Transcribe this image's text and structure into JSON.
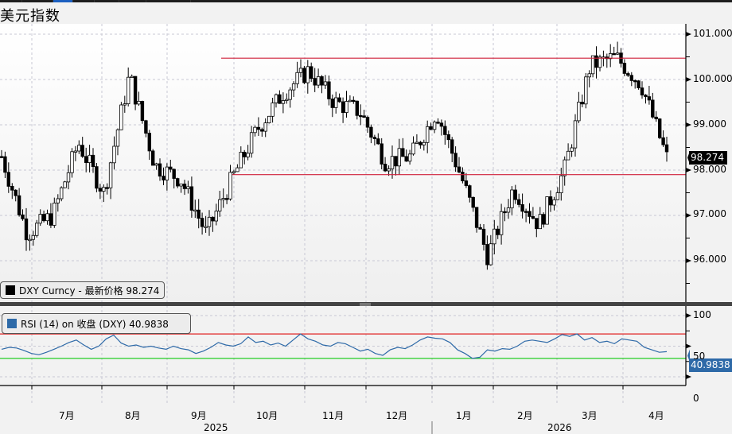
{
  "window": {
    "title": "美元指数"
  },
  "topbar": {
    "active_tab_index": 2
  },
  "main_panel": {
    "legend": {
      "label": "DXY Curncy - 最新价格 98.274",
      "swatch_color": "#000000"
    },
    "last_price_tag": "98.274",
    "y_ticks": [
      "101.000",
      "100.000",
      "99.000",
      "98.000",
      "97.000",
      "96.000"
    ]
  },
  "rsi_panel": {
    "legend": {
      "label": "RSI (14)  on 收盘 (DXY) 40.9838",
      "swatch_color": "#2e6aa8"
    },
    "last_value_tag": "40.9838",
    "y_ticks": [
      "100",
      "50",
      "0"
    ]
  },
  "x_axis": {
    "months": [
      "7月",
      "8月",
      "9月",
      "10月",
      "11月",
      "12月",
      "1月",
      "2月",
      "3月",
      "4月"
    ],
    "years": [
      "2025",
      "2026"
    ]
  },
  "colors": {
    "resistance": "#d0203a",
    "support": "#d0203a",
    "rsi_line": "#2e6aa8",
    "rsi_overbought": "#e02020",
    "rsi_oversold": "#22cc22"
  },
  "chart_data": [
    {
      "type": "candlestick",
      "title": "美元指数",
      "series_name": "DXY Curncy - 最新价格",
      "last_value": 98.274,
      "ylim": [
        95.5,
        101.2
      ],
      "y_ticks": [
        96,
        97,
        98,
        99,
        100,
        101
      ],
      "x_ticks": [
        "7月",
        "8月",
        "9月",
        "10月",
        "11月",
        "12月",
        "1月",
        "2月",
        "3月",
        "4月"
      ],
      "years": [
        "2025",
        "2026"
      ],
      "horizontal_lines": [
        {
          "name": "resistance",
          "value": 100.47
        },
        {
          "name": "support",
          "value": 97.9
        }
      ],
      "approx_close_path": [
        {
          "x": "2025-06 mid",
          "y": 98.3
        },
        {
          "x": "2025-06 end",
          "y": 96.6
        },
        {
          "x": "2025-07 start",
          "y": 97.0
        },
        {
          "x": "2025-07 mid",
          "y": 98.6
        },
        {
          "x": "2025-07 end",
          "y": 97.5
        },
        {
          "x": "2025-08 start",
          "y": 100.1
        },
        {
          "x": "2025-08 mid",
          "y": 98.1
        },
        {
          "x": "2025-09 start",
          "y": 97.8
        },
        {
          "x": "2025-09 mid",
          "y": 96.6
        },
        {
          "x": "2025-10 start",
          "y": 97.8
        },
        {
          "x": "2025-10 mid",
          "y": 98.9
        },
        {
          "x": "2025-11 start",
          "y": 99.7
        },
        {
          "x": "2025-11 mid",
          "y": 100.2
        },
        {
          "x": "2025-11 end",
          "y": 99.5
        },
        {
          "x": "2025-12 start",
          "y": 99.3
        },
        {
          "x": "2025-12 mid",
          "y": 98.2
        },
        {
          "x": "2025-12 end",
          "y": 98.3
        },
        {
          "x": "2026-01 start",
          "y": 99.3
        },
        {
          "x": "2026-01 mid",
          "y": 97.8
        },
        {
          "x": "2026-01 end",
          "y": 96.1
        },
        {
          "x": "2026-02 start",
          "y": 97.6
        },
        {
          "x": "2026-02 mid",
          "y": 96.8
        },
        {
          "x": "2026-03 start",
          "y": 98.0
        },
        {
          "x": "2026-03 mid",
          "y": 100.3
        },
        {
          "x": "2026-03 end",
          "y": 100.5
        },
        {
          "x": "2026-04 start",
          "y": 99.9
        },
        {
          "x": "2026-04 mid",
          "y": 98.274
        }
      ]
    },
    {
      "type": "line",
      "title": "RSI (14) on 收盘 (DXY)",
      "last_value": 40.9838,
      "ylim": [
        0,
        100
      ],
      "y_ticks": [
        0,
        50,
        100
      ],
      "horizontal_lines": [
        {
          "name": "overbought",
          "value": 70
        },
        {
          "name": "oversold",
          "value": 30
        }
      ],
      "approx_values": [
        45,
        48,
        47,
        43,
        38,
        36,
        40,
        45,
        50,
        56,
        60,
        52,
        45,
        50,
        62,
        68,
        55,
        50,
        52,
        48,
        50,
        47,
        45,
        50,
        46,
        44,
        38,
        42,
        48,
        56,
        52,
        50,
        54,
        65,
        56,
        58,
        52,
        55,
        50,
        60,
        70,
        62,
        58,
        52,
        50,
        56,
        54,
        48,
        42,
        45,
        38,
        35,
        44,
        48,
        46,
        52,
        60,
        65,
        63,
        62,
        56,
        44,
        38,
        30,
        32,
        44,
        42,
        46,
        45,
        50,
        58,
        60,
        58,
        56,
        62,
        69,
        66,
        70,
        60,
        64,
        56,
        58,
        54,
        62,
        60,
        58,
        48,
        44,
        40,
        41
      ]
    }
  ]
}
